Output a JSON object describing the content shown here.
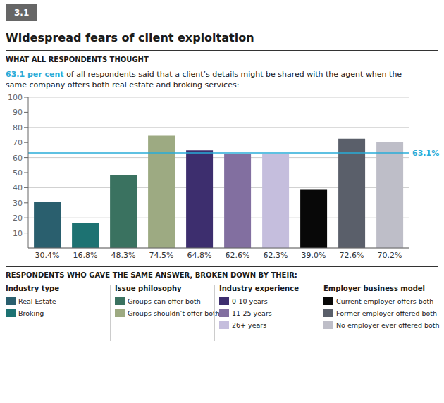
{
  "chart_data": {
    "type": "bar",
    "section_label": "3.1",
    "title": "Widespread fears of client exploitation",
    "subtitle": "WHAT ALL RESPONDENTS THOUGHT",
    "description_highlight": "63.1 per cent",
    "description": [
      " of all respondents said that a client’s details might be shared with the agent when the",
      "same company offers both real estate and broking services:"
    ],
    "categories": [
      "Real Estate",
      "Broking",
      "Groups can offer both",
      "Groups shouldn’t offer both",
      "0-10 years",
      "11-25 years",
      "26+ years",
      "Current employer offers both",
      "Former employer offered both",
      "No employer ever offered both"
    ],
    "values": [
      30.4,
      16.8,
      48.3,
      74.5,
      64.8,
      62.6,
      62.3,
      39.0,
      72.6,
      70.2
    ],
    "value_labels": [
      "30.4%",
      "16.8%",
      "48.3%",
      "74.5%",
      "64.8%",
      "62.6%",
      "62.3%",
      "39.0%",
      "72.6%",
      "70.2%"
    ],
    "data_labels": true,
    "colors": [
      "#2a5f6e",
      "#1d7272",
      "#3a7260",
      "#9daa82",
      "#3d2e6e",
      "#826fa0",
      "#c5bedd",
      "#080808",
      "#5a5f6a",
      "#bebec8"
    ],
    "reference_line": {
      "value": 63.1,
      "label": "63.1%",
      "color": "#29acd9"
    },
    "ylim": [
      0,
      100
    ],
    "yticks": [
      10,
      20,
      30,
      40,
      50,
      60,
      70,
      80,
      90,
      100
    ],
    "grid": true,
    "tick_labels": "y",
    "legend": "bottom",
    "legend_title": "RESPONDENTS WHO GAVE THE SAME ANSWER, BROKEN DOWN BY THEIR:",
    "legend_groups": [
      {
        "title": "Industry type",
        "categories": [
          "Real Estate",
          "Broking"
        ]
      },
      {
        "title": "Issue philosophy",
        "categories": [
          "Groups can offer both",
          "Groups shouldn’t offer both"
        ]
      },
      {
        "title": "Industry experience",
        "categories": [
          "0-10 years",
          "11-25 years",
          "26+ years"
        ]
      },
      {
        "title": "Employer business model",
        "categories": [
          "Current employer offers both",
          "Former employer offered both",
          "No employer ever offered both"
        ]
      }
    ]
  }
}
